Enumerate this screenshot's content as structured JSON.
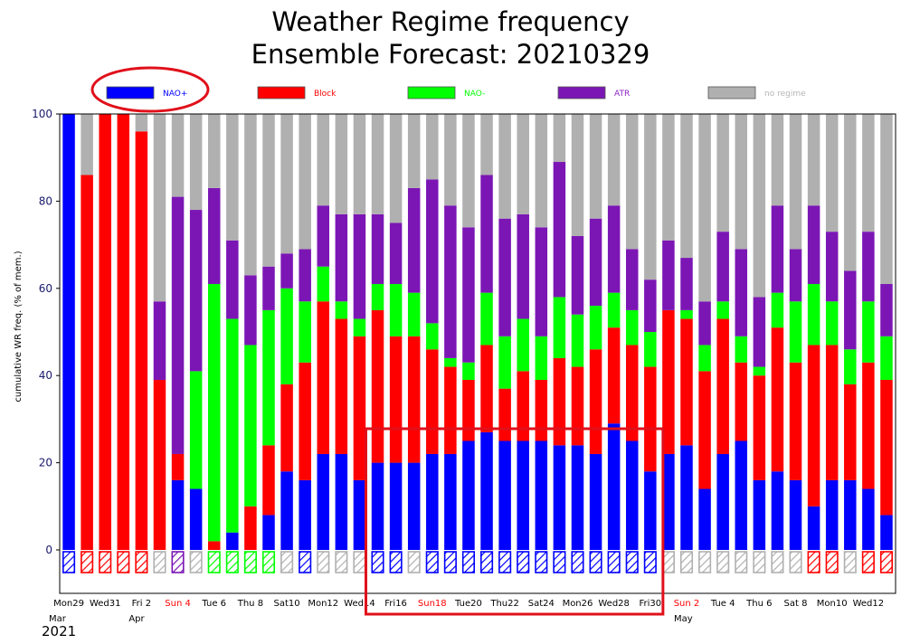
{
  "chart_data": {
    "type": "bar",
    "stacked": true,
    "title": "Weather Regime frequency",
    "subtitle": "Ensemble Forecast: 20210329",
    "ylabel": "cumulative WR freq. (% of mem.)",
    "ylim": [
      -10,
      100
    ],
    "yticks": [
      0,
      20,
      40,
      60,
      80,
      100
    ],
    "legend_position": "top",
    "series": [
      {
        "name": "NAO+",
        "color": "#0000ff",
        "label_color": "#0000ff",
        "values": [
          100,
          0,
          0,
          0,
          0,
          0,
          16,
          14,
          0,
          4,
          0,
          8,
          18,
          16,
          22,
          22,
          16,
          20,
          20,
          20,
          22,
          22,
          25,
          27,
          25,
          25,
          25,
          24,
          24,
          22,
          29,
          25,
          18,
          22,
          24,
          14,
          22,
          25,
          16,
          18,
          16,
          10,
          16,
          16,
          14,
          8
        ]
      },
      {
        "name": "Block",
        "color": "#ff0000",
        "label_color": "#ff0000",
        "values": [
          0,
          86,
          100,
          100,
          96,
          39,
          6,
          0,
          2,
          0,
          10,
          16,
          20,
          27,
          35,
          31,
          33,
          35,
          29,
          29,
          24,
          20,
          14,
          20,
          12,
          16,
          14,
          20,
          18,
          24,
          22,
          22,
          24,
          33,
          29,
          27,
          31,
          18,
          24,
          33,
          27,
          37,
          31,
          22,
          29,
          31
        ]
      },
      {
        "name": "NAO-",
        "color": "#00ff00",
        "label_color": "#00ff00",
        "values": [
          0,
          0,
          0,
          0,
          0,
          0,
          0,
          27,
          59,
          49,
          37,
          31,
          22,
          14,
          8,
          4,
          4,
          6,
          12,
          10,
          6,
          2,
          4,
          12,
          12,
          12,
          10,
          14,
          12,
          10,
          8,
          8,
          8,
          0,
          2,
          6,
          4,
          6,
          2,
          8,
          14,
          14,
          10,
          8,
          14,
          10
        ]
      },
      {
        "name": "ATR",
        "color": "#7b16b5",
        "label_color": "#8a1fc4",
        "values": [
          0,
          0,
          0,
          0,
          0,
          18,
          59,
          37,
          22,
          18,
          16,
          10,
          8,
          12,
          14,
          20,
          24,
          16,
          14,
          24,
          33,
          35,
          31,
          27,
          27,
          24,
          25,
          31,
          18,
          20,
          20,
          14,
          12,
          16,
          12,
          10,
          16,
          20,
          16,
          20,
          12,
          18,
          16,
          18,
          16,
          12
        ]
      },
      {
        "name": "no regime",
        "color": "#b0b0b0",
        "label_color": "#b5b5b5",
        "values": [
          0,
          14,
          0,
          0,
          4,
          43,
          19,
          22,
          17,
          29,
          37,
          35,
          32,
          31,
          21,
          23,
          23,
          23,
          25,
          17,
          15,
          21,
          26,
          14,
          24,
          23,
          26,
          11,
          28,
          24,
          21,
          31,
          38,
          29,
          33,
          43,
          27,
          31,
          42,
          21,
          31,
          21,
          27,
          36,
          27,
          39
        ]
      }
    ],
    "dominant_regime": [
      "NAO+",
      "Block",
      "Block",
      "Block",
      "Block",
      "no regime",
      "ATR",
      "no regime",
      "NAO-",
      "NAO-",
      "NAO-",
      "NAO-",
      "no regime",
      "NAO+",
      "no regime",
      "no regime",
      "no regime",
      "NAO+",
      "NAO+",
      "no regime",
      "NAO+",
      "NAO+",
      "NAO+",
      "NAO+",
      "NAO+",
      "NAO+",
      "NAO+",
      "NAO+",
      "NAO+",
      "NAO+",
      "NAO+",
      "NAO+",
      "NAO+",
      "no regime",
      "no regime",
      "no regime",
      "no regime",
      "no regime",
      "no regime",
      "no regime",
      "no regime",
      "Block",
      "Block",
      "no regime",
      "Block",
      "Block"
    ],
    "x_tick_labels": [
      {
        "index": 0,
        "text": "Mon29",
        "color": "#000000"
      },
      {
        "index": 2,
        "text": "Wed31",
        "color": "#000000"
      },
      {
        "index": 4,
        "text": "Fri 2",
        "color": "#000000"
      },
      {
        "index": 6,
        "text": "Sun 4",
        "color": "#ff0000"
      },
      {
        "index": 8,
        "text": "Tue 6",
        "color": "#000000"
      },
      {
        "index": 10,
        "text": "Thu 8",
        "color": "#000000"
      },
      {
        "index": 12,
        "text": "Sat10",
        "color": "#000000"
      },
      {
        "index": 14,
        "text": "Mon12",
        "color": "#000000"
      },
      {
        "index": 16,
        "text": "Wed14",
        "color": "#000000"
      },
      {
        "index": 18,
        "text": "Fri16",
        "color": "#000000"
      },
      {
        "index": 20,
        "text": "Sun18",
        "color": "#ff0000"
      },
      {
        "index": 22,
        "text": "Tue20",
        "color": "#000000"
      },
      {
        "index": 24,
        "text": "Thu22",
        "color": "#000000"
      },
      {
        "index": 26,
        "text": "Sat24",
        "color": "#000000"
      },
      {
        "index": 28,
        "text": "Mon26",
        "color": "#000000"
      },
      {
        "index": 30,
        "text": "Wed28",
        "color": "#000000"
      },
      {
        "index": 32,
        "text": "Fri30",
        "color": "#000000"
      },
      {
        "index": 34,
        "text": "Sun 2",
        "color": "#ff0000"
      },
      {
        "index": 36,
        "text": "Tue 4",
        "color": "#000000"
      },
      {
        "index": 38,
        "text": "Thu 6",
        "color": "#000000"
      },
      {
        "index": 40,
        "text": "Sat 8",
        "color": "#000000"
      },
      {
        "index": 42,
        "text": "Mon10",
        "color": "#000000"
      },
      {
        "index": 44,
        "text": "Wed12",
        "color": "#000000"
      }
    ],
    "month_labels": [
      {
        "index": 0,
        "text": "Mar"
      },
      {
        "index": 4,
        "text": "Apr"
      },
      {
        "index": 34,
        "text": "May"
      }
    ],
    "year_label": "2021",
    "grid": false
  },
  "annotations": {
    "legend_highlight": "NAO+",
    "highlight_box_range": [
      17,
      32
    ]
  }
}
